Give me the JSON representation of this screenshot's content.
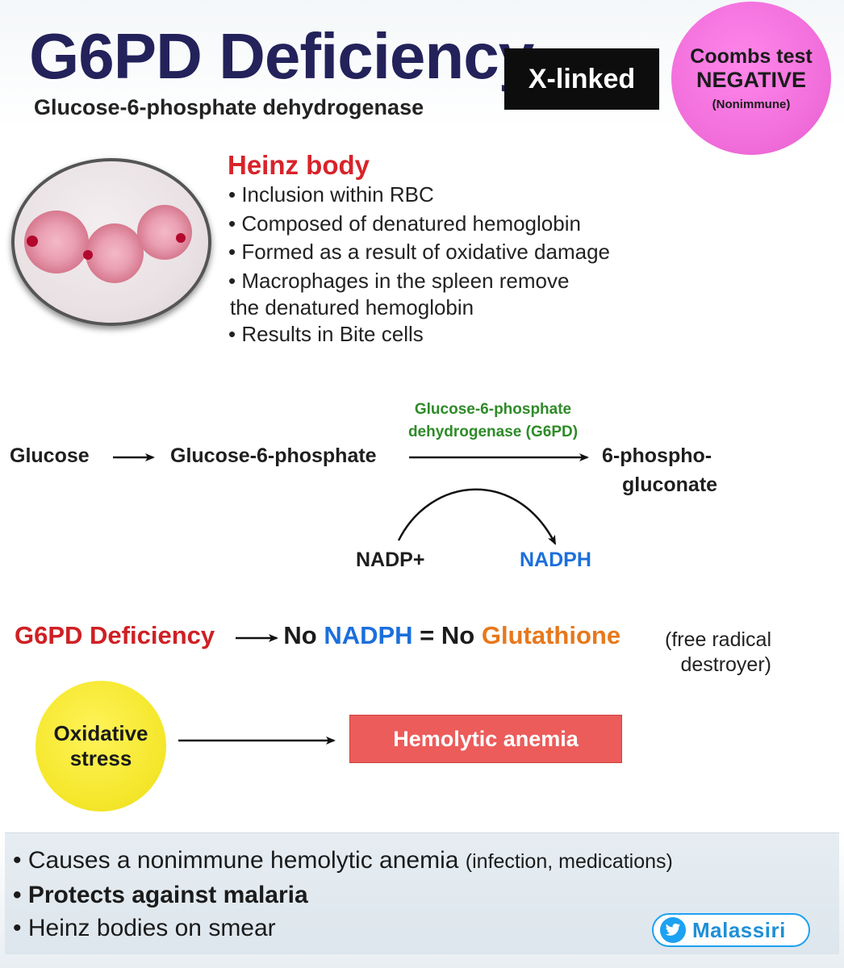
{
  "header": {
    "title": "G6PD Deficiency",
    "subtitle": "Glucose-6-phosphate dehydrogenase",
    "tag": "X-linked",
    "coombs": {
      "line1": "Coombs test",
      "line2": "NEGATIVE",
      "line3": "(Nonimmune)"
    }
  },
  "heinz": {
    "title": "Heinz body",
    "bullets": [
      "Inclusion within RBC",
      "Composed of denatured hemoglobin",
      "Formed as a result of oxidative damage",
      "Macrophages in the spleen remove",
      "Results in Bite cells"
    ],
    "continuation": "the denatured hemoglobin"
  },
  "pathway": {
    "glucose": "Glucose",
    "g6p": "Glucose-6-phosphate",
    "enzyme_line1": "Glucose-6-phosphate",
    "enzyme_line2": "dehydrogenase (G6PD)",
    "product_line1": "6-phospho-",
    "product_line2": "gluconate",
    "nadp": "NADP+",
    "nadph": "NADPH"
  },
  "deficiency": {
    "cause": "G6PD Deficiency",
    "no1": "No",
    "nadph": "NADPH",
    "eq": "=",
    "no2": "No",
    "glutathione": "Glutathione",
    "note_line1": "(free radical",
    "note_line2": "destroyer)"
  },
  "stress": {
    "line1": "Oxidative",
    "line2": "stress",
    "result": "Hemolytic anemia"
  },
  "summary": {
    "item1_main": "Causes a nonimmune hemolytic anemia",
    "item1_paren": "(infection, medications)",
    "item2": "Protects against malaria",
    "item3": "Heinz bodies on smear"
  },
  "credit": {
    "handle": "Malassiri",
    "icon": "twitter-bird-icon"
  },
  "colors": {
    "title": "#23225a",
    "heinz_title": "#d8232a",
    "enzyme": "#2e8b28",
    "nadph": "#1c6fdc",
    "glutathione": "#e7781c",
    "coombs": "#f270dc",
    "oxidative": "#f5e72c",
    "hemolytic": "#ec5c5a"
  }
}
